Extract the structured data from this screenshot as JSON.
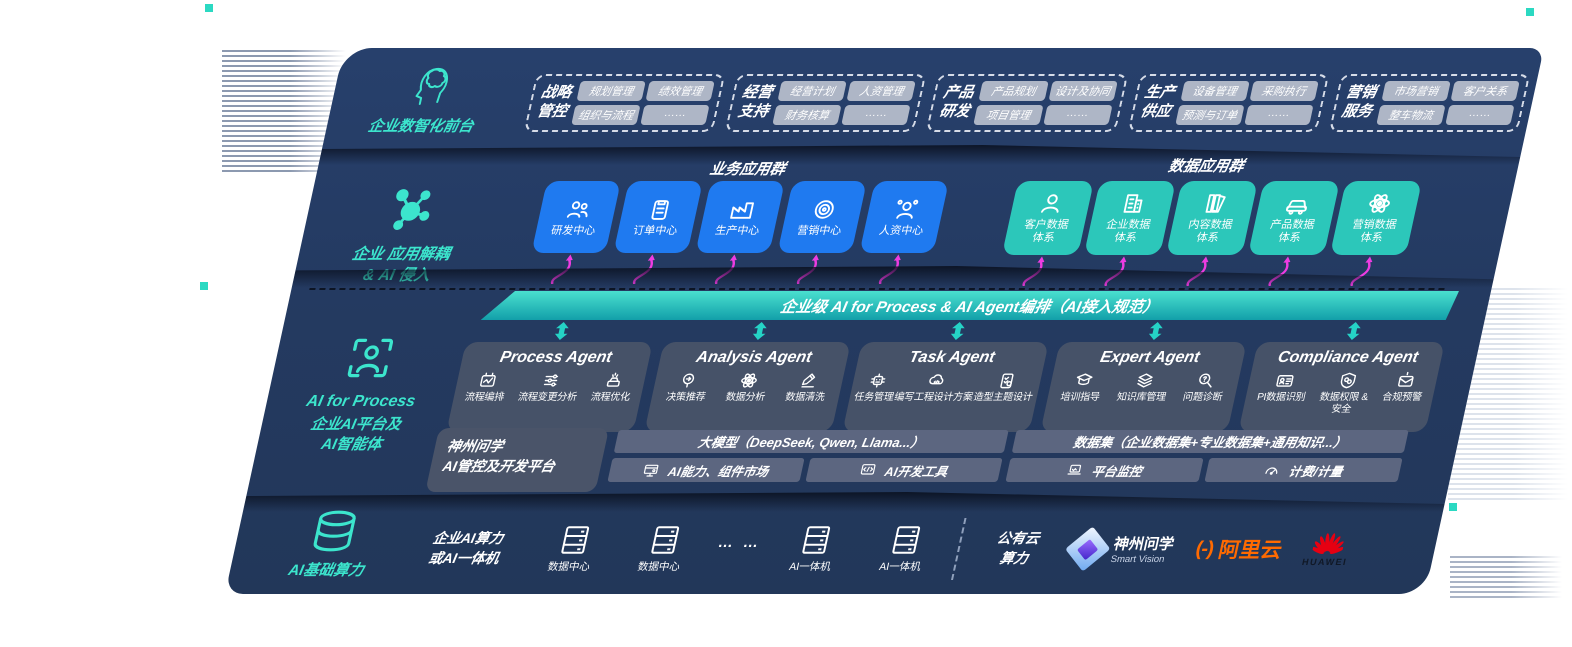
{
  "colors": {
    "accent": "#3ce5cd",
    "app_blue": "#1f7af0",
    "data_teal": "#2cc7ba",
    "magenta": "#ee3ce2",
    "panel": "#243a61"
  },
  "front_office": {
    "label": "企业数智化前台",
    "groups": [
      {
        "name": "战略\n管控",
        "chips": [
          "规划管理",
          "绩效管理",
          "组织与流程",
          "……"
        ]
      },
      {
        "name": "经营\n支持",
        "chips": [
          "经营计划",
          "人资管理",
          "财务核算",
          "……"
        ]
      },
      {
        "name": "产品\n研发",
        "chips": [
          "产品规划",
          "设计及协同",
          "项目管理",
          "……"
        ]
      },
      {
        "name": "生产\n供应",
        "chips": [
          "设备管理",
          "采购执行",
          "预测与订单",
          "……"
        ]
      },
      {
        "name": "营销\n服务",
        "chips": [
          "市场营销",
          "客户关系",
          "整车物流",
          "……"
        ]
      }
    ]
  },
  "decoupling": {
    "label": "企业 应用解耦\n& AI 侵入",
    "business_title": "业务应用群",
    "data_title": "数据应用群",
    "business_apps": [
      {
        "icon": "team",
        "label": "研发中心"
      },
      {
        "icon": "clipboard",
        "label": "订单中心"
      },
      {
        "icon": "factory",
        "label": "生产中心"
      },
      {
        "icon": "target",
        "label": "营销中心"
      },
      {
        "icon": "person-net",
        "label": "人资中心"
      }
    ],
    "data_apps": [
      {
        "icon": "user",
        "label": "客户数据\n体系"
      },
      {
        "icon": "building",
        "label": "企业数据\n体系"
      },
      {
        "icon": "books",
        "label": "内容数据\n体系"
      },
      {
        "icon": "car",
        "label": "产品数据\n体系"
      },
      {
        "icon": "atom",
        "label": "营销数据\n体系"
      }
    ]
  },
  "orchestration_bar": {
    "label": "企业级 AI for Process & AI Agent编排（AI接入规范）"
  },
  "ai_platform": {
    "label_line1": "AI for Process",
    "label_line2": "企业AI平台及\nAI智能体",
    "agents": [
      {
        "title": "Process Agent",
        "items": [
          {
            "icon": "flow-box",
            "label": "流程编排"
          },
          {
            "icon": "flow-change",
            "label": "流程变更分析"
          },
          {
            "icon": "optimize",
            "label": "流程优化"
          }
        ]
      },
      {
        "title": "Analysis Agent",
        "items": [
          {
            "icon": "decision",
            "label": "决策推荐"
          },
          {
            "icon": "atom",
            "label": "数据分析"
          },
          {
            "icon": "clean",
            "label": "数据清洗"
          }
        ]
      },
      {
        "title": "Task Agent",
        "items": [
          {
            "icon": "robot-grid",
            "label": "任务管理"
          },
          {
            "icon": "cloud-gear",
            "label": "编写工程设计方案"
          },
          {
            "icon": "checklist",
            "label": "造型主题设计"
          }
        ]
      },
      {
        "title": "Expert Agent",
        "items": [
          {
            "icon": "training",
            "label": "培训指导"
          },
          {
            "icon": "layers",
            "label": "知识库管理"
          },
          {
            "icon": "diagnose",
            "label": "问题诊断"
          }
        ]
      },
      {
        "title": "Compliance Agent",
        "items": [
          {
            "icon": "idcard",
            "label": "PI数据识别"
          },
          {
            "icon": "shield-link",
            "label": "数据权限 &\n安全"
          },
          {
            "icon": "alert-mail",
            "label": "合规预警"
          }
        ]
      }
    ]
  },
  "dev_platform": {
    "label": "神州问学\nAI管控及开发平台",
    "model_bar": "大模型（DeepSeek, Qwen, Llama...）",
    "model_cells": [
      {
        "icon": "market",
        "label": "AI能力、组件市场"
      },
      {
        "icon": "devtools",
        "label": "AI开发工具"
      }
    ],
    "dataset_bar": "数据集（企业数据集+专业数据集+通用知识...）",
    "dataset_cells": [
      {
        "icon": "laptop",
        "label": "平台监控"
      },
      {
        "icon": "gauge",
        "label": "计费/计量"
      }
    ]
  },
  "infrastructure": {
    "label": "AI基础算力",
    "compute_label": "企业AI算力\n或AI一体机",
    "servers_a": [
      {
        "label": "数据中心"
      },
      {
        "label": "数据中心"
      }
    ],
    "dots": "… …",
    "servers_b": [
      {
        "label": "AI一体机"
      },
      {
        "label": "AI一体机"
      }
    ],
    "public_cloud": "公有云\n算力",
    "vendors": {
      "shenzhou": {
        "name": "神州问学",
        "sub": "Smart Vision"
      },
      "aliyun": {
        "glyph": "(-)",
        "name": "阿里云"
      },
      "huawei": {
        "name": "HUAWEI"
      }
    }
  }
}
